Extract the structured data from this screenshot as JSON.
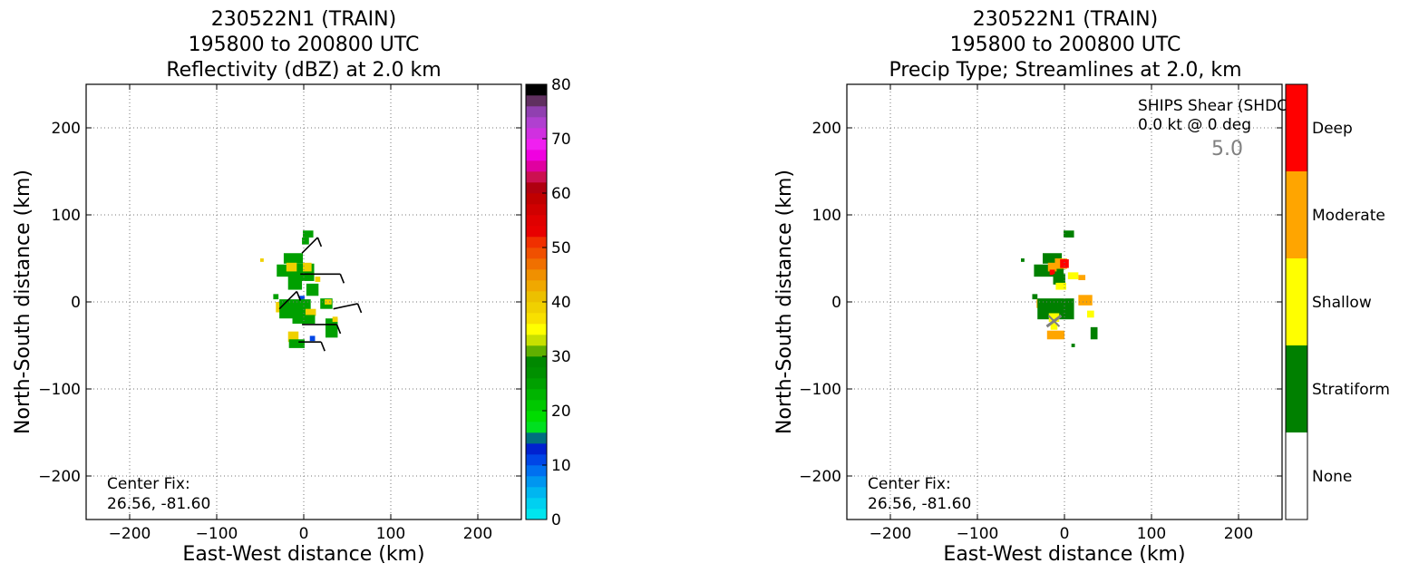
{
  "chart_data": [
    {
      "type": "heatmap",
      "title_lines": [
        "230522N1 (TRAIN)",
        "195800 to 200800 UTC",
        "Reflectivity (dBZ) at 2.0 km"
      ],
      "xlabel": "East-West distance (km)",
      "ylabel": "North-South distance (km)",
      "xlim": [
        -250,
        250
      ],
      "ylim": [
        -250,
        250
      ],
      "xticks": [
        -200,
        -100,
        0,
        100,
        200
      ],
      "yticks": [
        -200,
        -100,
        0,
        100,
        200
      ],
      "grid": true,
      "annotation_lines": [
        "Center Fix:",
        "26.56, -81.60"
      ],
      "colorbar": {
        "min": 0,
        "max": 80,
        "tick_values": [
          0,
          10,
          20,
          30,
          40,
          50,
          60,
          70,
          80
        ],
        "tick_labels": [
          "0",
          "10",
          "20",
          "30",
          "40",
          "50",
          "60",
          "70",
          "80"
        ],
        "colors": [
          "#00e5ee",
          "#00d0f0",
          "#00b6f0",
          "#0096f0",
          "#0070f0",
          "#0046e6",
          "#0022d0",
          "#007080",
          "#00e020",
          "#00dc00",
          "#00c800",
          "#00b400",
          "#00a000",
          "#009000",
          "#008800",
          "#60b000",
          "#c8e000",
          "#ffff00",
          "#f8e000",
          "#f0d000",
          "#ecc000",
          "#f0a800",
          "#f09000",
          "#f07000",
          "#f05000",
          "#f03000",
          "#e80000",
          "#e00000",
          "#d00000",
          "#c00000",
          "#b00010",
          "#cc1050",
          "#e000a0",
          "#f000e0",
          "#f020f0",
          "#d030e0",
          "#b040d0",
          "#9040b0",
          "#603060",
          "#000000"
        ]
      },
      "echo_blocks": [
        {
          "x": 5,
          "y": 78,
          "w": 12,
          "h": 8,
          "cat": "green"
        },
        {
          "x": 2,
          "y": 70,
          "w": 8,
          "h": 8,
          "cat": "green"
        },
        {
          "x": -12,
          "y": 50,
          "w": 22,
          "h": 12,
          "cat": "green"
        },
        {
          "x": -16,
          "y": 36,
          "w": 30,
          "h": 14,
          "cat": "green"
        },
        {
          "x": 0,
          "y": 34,
          "w": 24,
          "h": 20,
          "cat": "green"
        },
        {
          "x": -10,
          "y": 22,
          "w": 16,
          "h": 16,
          "cat": "green"
        },
        {
          "x": 10,
          "y": 14,
          "w": 14,
          "h": 14,
          "cat": "green"
        },
        {
          "x": -14,
          "y": 40,
          "w": 12,
          "h": 10,
          "cat": "yellow"
        },
        {
          "x": 4,
          "y": 40,
          "w": 10,
          "h": 10,
          "cat": "yellow"
        },
        {
          "x": 16,
          "y": 26,
          "w": 6,
          "h": 6,
          "cat": "yellow"
        },
        {
          "x": -32,
          "y": 6,
          "w": 6,
          "h": 6,
          "cat": "green"
        },
        {
          "x": -2,
          "y": 0,
          "w": 6,
          "h": 14,
          "cat": "blue"
        },
        {
          "x": 26,
          "y": -2,
          "w": 14,
          "h": 12,
          "cat": "green"
        },
        {
          "x": 28,
          "y": 0,
          "w": 8,
          "h": 6,
          "cat": "yellow"
        },
        {
          "x": -24,
          "y": -6,
          "w": 16,
          "h": 12,
          "cat": "yellow"
        },
        {
          "x": -10,
          "y": -8,
          "w": 36,
          "h": 22,
          "cat": "green"
        },
        {
          "x": 8,
          "y": -12,
          "w": 12,
          "h": 8,
          "cat": "yellow"
        },
        {
          "x": 0,
          "y": -20,
          "w": 26,
          "h": 10,
          "cat": "green"
        },
        {
          "x": 32,
          "y": -30,
          "w": 14,
          "h": 22,
          "cat": "green"
        },
        {
          "x": -12,
          "y": -40,
          "w": 12,
          "h": 12,
          "cat": "yellow"
        },
        {
          "x": -8,
          "y": -48,
          "w": 18,
          "h": 10,
          "cat": "green"
        },
        {
          "x": 10,
          "y": -42,
          "w": 6,
          "h": 6,
          "cat": "blue"
        },
        {
          "x": 36,
          "y": -20,
          "w": 6,
          "h": 6,
          "cat": "yellow"
        },
        {
          "x": -48,
          "y": 48,
          "w": 4,
          "h": 4,
          "cat": "yellow"
        }
      ],
      "wind_barbs": [
        {
          "x": -2,
          "y": 56,
          "dx": 18,
          "dy": 18
        },
        {
          "x": -4,
          "y": 32,
          "dx": 46,
          "dy": 0
        },
        {
          "x": -28,
          "y": -8,
          "dx": 20,
          "dy": 20
        },
        {
          "x": 34,
          "y": -8,
          "dx": 28,
          "dy": 6
        },
        {
          "x": -2,
          "y": -26,
          "dx": 40,
          "dy": 0
        },
        {
          "x": -6,
          "y": -46,
          "dx": 26,
          "dy": 0
        }
      ]
    },
    {
      "type": "heatmap",
      "title_lines": [
        "230522N1 (TRAIN)",
        "195800 to 200800 UTC",
        "Precip Type; Streamlines at 2.0,      km"
      ],
      "xlabel": "East-West distance (km)",
      "ylabel": "North-South distance (km)",
      "xlim": [
        -250,
        250
      ],
      "ylim": [
        -250,
        250
      ],
      "xticks": [
        -200,
        -100,
        0,
        100,
        200
      ],
      "yticks": [
        -200,
        -100,
        0,
        100,
        200
      ],
      "grid": true,
      "annotation_lines": [
        "Center Fix:",
        "26.56, -81.60"
      ],
      "shear_text_lines": [
        "SHIPS Shear (SHDC):",
        "0.0 kt @ 0 deg"
      ],
      "shear_marker_label": "5.0",
      "categories": [
        "None",
        "Stratiform",
        "Shallow",
        "Moderate",
        "Deep"
      ],
      "category_colors": [
        "#ffffff",
        "#008000",
        "#ffff00",
        "#ffa500",
        "#ff0000"
      ],
      "echo_blocks": [
        {
          "x": 5,
          "y": 78,
          "w": 12,
          "h": 8,
          "cat": "Stratiform"
        },
        {
          "x": -14,
          "y": 50,
          "w": 22,
          "h": 12,
          "cat": "Stratiform"
        },
        {
          "x": -18,
          "y": 36,
          "w": 34,
          "h": 14,
          "cat": "Stratiform"
        },
        {
          "x": -4,
          "y": 44,
          "w": 14,
          "h": 12,
          "cat": "Moderate"
        },
        {
          "x": -14,
          "y": 40,
          "w": 10,
          "h": 10,
          "cat": "Moderate"
        },
        {
          "x": 0,
          "y": 44,
          "w": 10,
          "h": 10,
          "cat": "Deep"
        },
        {
          "x": -14,
          "y": 34,
          "w": 6,
          "h": 6,
          "cat": "Deep"
        },
        {
          "x": -6,
          "y": 26,
          "w": 14,
          "h": 12,
          "cat": "Stratiform"
        },
        {
          "x": 10,
          "y": 30,
          "w": 12,
          "h": 8,
          "cat": "Shallow"
        },
        {
          "x": 20,
          "y": 28,
          "w": 8,
          "h": 6,
          "cat": "Moderate"
        },
        {
          "x": -4,
          "y": 18,
          "w": 12,
          "h": 8,
          "cat": "Shallow"
        },
        {
          "x": -34,
          "y": 6,
          "w": 6,
          "h": 6,
          "cat": "Stratiform"
        },
        {
          "x": -26,
          "y": -2,
          "w": 12,
          "h": 10,
          "cat": "Moderate"
        },
        {
          "x": -18,
          "y": -6,
          "w": 10,
          "h": 10,
          "cat": "Deep"
        },
        {
          "x": -10,
          "y": -8,
          "w": 42,
          "h": 24,
          "cat": "Stratiform"
        },
        {
          "x": 24,
          "y": 2,
          "w": 16,
          "h": 12,
          "cat": "Moderate"
        },
        {
          "x": 30,
          "y": -14,
          "w": 8,
          "h": 8,
          "cat": "Shallow"
        },
        {
          "x": -12,
          "y": -18,
          "w": 12,
          "h": 10,
          "cat": "Shallow"
        },
        {
          "x": -10,
          "y": -38,
          "w": 20,
          "h": 10,
          "cat": "Moderate"
        },
        {
          "x": -12,
          "y": -28,
          "w": 8,
          "h": 8,
          "cat": "Shallow"
        },
        {
          "x": 34,
          "y": -36,
          "w": 8,
          "h": 14,
          "cat": "Stratiform"
        },
        {
          "x": 10,
          "y": -50,
          "w": 4,
          "h": 4,
          "cat": "Stratiform"
        },
        {
          "x": -48,
          "y": 48,
          "w": 4,
          "h": 4,
          "cat": "Stratiform"
        }
      ],
      "shear_marker": {
        "x": -12,
        "y": -22
      }
    }
  ]
}
